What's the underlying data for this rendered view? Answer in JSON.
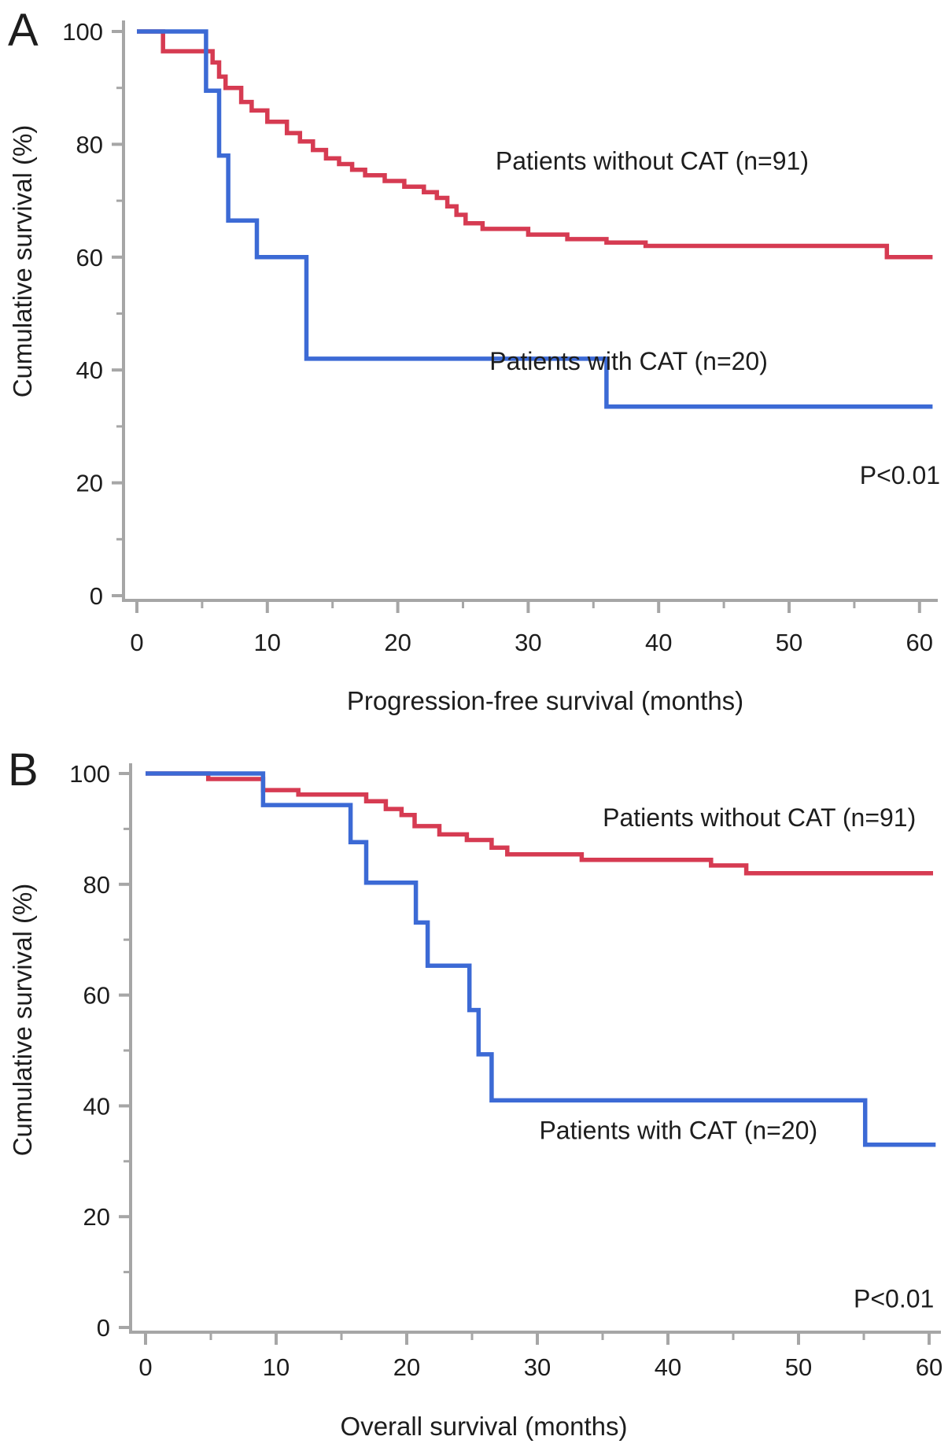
{
  "figure": {
    "background": "#ffffff",
    "text_color": "#1d1d1d",
    "axis_color": "#a6a6a6",
    "red_color": "#d63b52",
    "blue_color": "#3c6ad5"
  },
  "chart_data": [
    {
      "type": "line",
      "subtype": "kaplan-meier-step",
      "panel_label": "A",
      "xlabel": "Progression-free survival (months)",
      "ylabel": "Cumulative survival (%)",
      "xlim": [
        0,
        61
      ],
      "ylim": [
        0,
        100
      ],
      "x_major_ticks": [
        0,
        10,
        20,
        30,
        40,
        50,
        60
      ],
      "x_minor_ticks": [
        5,
        15,
        25,
        35,
        45,
        55
      ],
      "y_major_ticks": [
        0,
        20,
        40,
        60,
        80,
        100
      ],
      "y_minor_ticks": [
        10,
        30,
        50,
        70,
        90
      ],
      "grid": false,
      "legend_position": "inline-annotations",
      "annotation": "P<0.01",
      "annotation_pos": [
        58.5,
        19.8
      ],
      "series": [
        {
          "name": "Patients without CAT (n=91)",
          "color": "#d63b52",
          "label_pos": [
            39.5,
            75.5
          ],
          "steps": [
            [
              0,
              100
            ],
            [
              2,
              96.5
            ],
            [
              5.8,
              94.5
            ],
            [
              6.3,
              92
            ],
            [
              6.8,
              90
            ],
            [
              8,
              87.5
            ],
            [
              8.8,
              86
            ],
            [
              10,
              84
            ],
            [
              11.5,
              82
            ],
            [
              12.5,
              80.5
            ],
            [
              13.5,
              79
            ],
            [
              14.5,
              77.5
            ],
            [
              15.5,
              76.5
            ],
            [
              16.5,
              75.5
            ],
            [
              17.5,
              74.5
            ],
            [
              19,
              73.5
            ],
            [
              20.5,
              72.5
            ],
            [
              22,
              71.5
            ],
            [
              23,
              70.5
            ],
            [
              23.8,
              69
            ],
            [
              24.5,
              67.5
            ],
            [
              25.2,
              66
            ],
            [
              26.5,
              65
            ],
            [
              30,
              64
            ],
            [
              33,
              63.2
            ],
            [
              36,
              62.6
            ],
            [
              39,
              62
            ],
            [
              57.5,
              60
            ],
            [
              61,
              60
            ]
          ]
        },
        {
          "name": "Patients with CAT (n=20)",
          "color": "#3c6ad5",
          "label_pos": [
            37.7,
            40
          ],
          "steps": [
            [
              0,
              100
            ],
            [
              5.3,
              89.5
            ],
            [
              6.3,
              78
            ],
            [
              7,
              66.5
            ],
            [
              9.2,
              60
            ],
            [
              13,
              42
            ],
            [
              36,
              33.5
            ],
            [
              61,
              33.5
            ]
          ]
        }
      ]
    },
    {
      "type": "line",
      "subtype": "kaplan-meier-step",
      "panel_label": "B",
      "xlabel": "Overall survival (months)",
      "ylabel": "Cumulative survival (%)",
      "xlim": [
        0,
        61
      ],
      "ylim": [
        0,
        100
      ],
      "x_major_ticks": [
        0,
        10,
        20,
        30,
        40,
        50,
        60
      ],
      "x_minor_ticks": [
        5,
        15,
        25,
        35,
        45,
        55
      ],
      "y_major_ticks": [
        0,
        20,
        40,
        60,
        80,
        100
      ],
      "y_minor_ticks": [
        10,
        30,
        50,
        70,
        90
      ],
      "grid": false,
      "legend_position": "inline-annotations",
      "annotation": "P<0.01",
      "annotation_pos": [
        57.3,
        3.6
      ],
      "series": [
        {
          "name": "Patients without CAT (n=91)",
          "color": "#d63b52",
          "label_pos": [
            47.0,
            90.5
          ],
          "steps": [
            [
              0,
              100
            ],
            [
              4.8,
              99
            ],
            [
              9,
              97
            ],
            [
              11.7,
              96.2
            ],
            [
              16.9,
              95
            ],
            [
              18.4,
              93.6
            ],
            [
              19.6,
              92.5
            ],
            [
              20.6,
              90.5
            ],
            [
              22.5,
              89
            ],
            [
              24.6,
              88
            ],
            [
              26.5,
              86.6
            ],
            [
              27.7,
              85.4
            ],
            [
              33.4,
              84.4
            ],
            [
              43.3,
              83.4
            ],
            [
              46,
              82
            ],
            [
              60.3,
              82
            ]
          ]
        },
        {
          "name": "Patients with CAT (n=20)",
          "color": "#3c6ad5",
          "label_pos": [
            40.8,
            34.0
          ],
          "steps": [
            [
              0,
              100
            ],
            [
              9,
              94.3
            ],
            [
              15.7,
              87.6
            ],
            [
              16.9,
              80.3
            ],
            [
              20.7,
              73.1
            ],
            [
              21.6,
              65.3
            ],
            [
              24.8,
              57.3
            ],
            [
              25.5,
              49.3
            ],
            [
              26.5,
              41
            ],
            [
              55.1,
              33
            ],
            [
              60.5,
              33
            ]
          ]
        }
      ]
    }
  ]
}
